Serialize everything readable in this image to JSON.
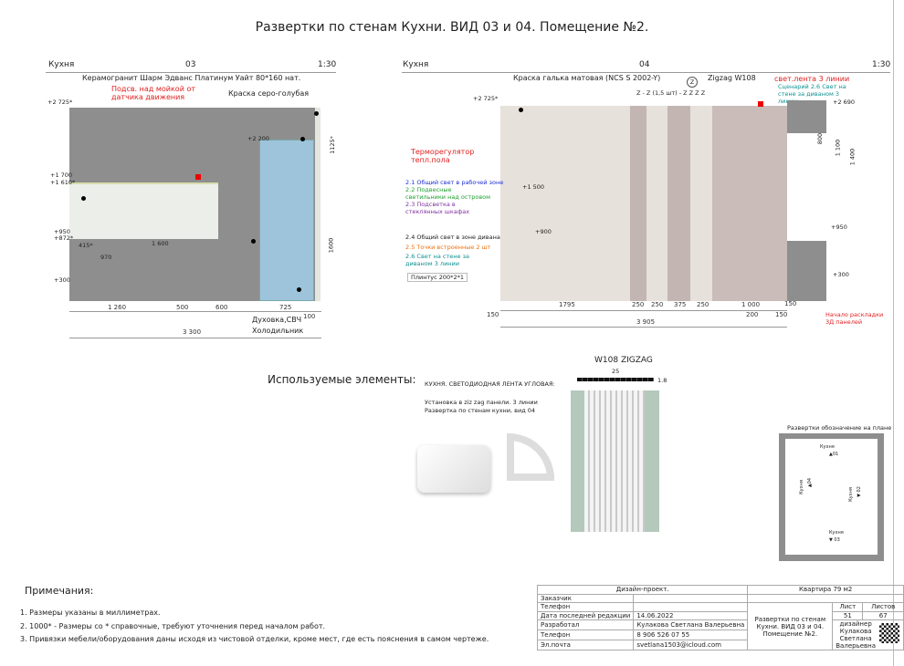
{
  "title": "Развертки по стенам Кухни. ВИД 03 и 04. Помещение №2.",
  "view03": {
    "room": "Кухня",
    "number": "03",
    "scale": "1:30",
    "labels": {
      "tile": "Керамогранит Шарм Эдванс Платинум Уайт 80*160 нат.",
      "backlight": "Подсв. над мойкой от датчика движения",
      "paint": "Краска серо-голубая",
      "oven": "Духовка,СВЧ",
      "fridge": "Холодильник"
    },
    "levels": {
      "top": "+2 725*",
      "l2200": "+2 200",
      "l1700": "+1 700",
      "l1610": "+1 610*",
      "l950": "+950",
      "l872": "+872*",
      "l300": "+300"
    },
    "dims": {
      "d415": "415*",
      "d1600": "1 600",
      "d970": "970",
      "d1260": "1 260",
      "d500": "500",
      "d600": "600",
      "d725": "725",
      "d100": "100",
      "d3300": "3 300",
      "v1125": "1125*",
      "v1600": "1600"
    }
  },
  "view04": {
    "room": "Кухня",
    "number": "04",
    "scale": "1:30",
    "labels": {
      "paint": "Краска галька матовая (NCS S 2002-Y)",
      "zmark": "Z",
      "zigzag": "Zigzag W108",
      "zrow": "Z   -   Z (1,5 шт)   -     Z     Z     Z     Z",
      "strip": "свет.лента 3 линии",
      "scenario": "Сценарий 2.6 Свет на стене за диваном 3 линии",
      "thermo": "Терморегулятор тепл.пола",
      "plinth": "Плинтус 200*2*1",
      "start": "Начало раскладки 3Д панелей"
    },
    "lights": [
      {
        "text": "2.1 Общий свет в рабочей зоне",
        "color": "#2030d0"
      },
      {
        "text": "2.2 Подвесные светильники над островом",
        "color": "#20a030"
      },
      {
        "text": "2.3 Подсветка в стеклянных шкафах",
        "color": "#8030a0"
      },
      {
        "text": "2.4 Общий свет в зоне дивана",
        "color": "#222222"
      },
      {
        "text": "2.5 Точки встроенные 2 шт",
        "color": "#f07010"
      },
      {
        "text": "2.6 Свет на стене за диваном 3 линии",
        "color": "#109090"
      }
    ],
    "levels": {
      "top": "+2 725*",
      "right": "+2 690",
      "l1500": "+1 500",
      "l900": "+900",
      "l950": "+950",
      "l300": "+300"
    },
    "dims": {
      "d1795": "1795",
      "d250a": "250",
      "d250b": "250",
      "d375": "375",
      "d250c": "250",
      "d1000": "1 000",
      "d150a": "150",
      "d150b": "150",
      "d200": "200",
      "d150c": "150",
      "d3905": "3 905",
      "v800": "800",
      "v1100": "1 100",
      "v1400": "1 400"
    }
  },
  "elements": {
    "heading": "Используемые элементы:",
    "led_title": "КУХНЯ. СВЕТОДИОДНАЯ ЛЕНТА УГЛОВАЯ:",
    "led_note1": "Установка в ziz zag панели. 3 линии",
    "led_note2": "Развертка по стенам кухни, вид 04",
    "panel_title": "W108 ZIGZAG",
    "panel_w": "25",
    "panel_h": "1.8",
    "plan_title": "Развертки обозначение на плане",
    "plan_labels": [
      "Кухня",
      "▲01",
      "Кухня",
      "▲04",
      "Кухня",
      "▼ 02",
      "Кухня",
      "▼ 03"
    ]
  },
  "notes": {
    "heading": "Примечания:",
    "items": [
      "1. Размеры указаны в миллиметрах.",
      "2. 1000* - Размеры со * справочные, требуют уточнения перед началом работ.",
      "3. Привязки мебели/оборудования даны исходя из чистовой отделки, кроме мест, где есть пояснения в самом чертеже."
    ]
  },
  "titleblock": {
    "project": "Дизайн-проект.",
    "object": "Квартира 79 м2",
    "customer": "Заказчик",
    "phone_label": "Телефон",
    "date_label": "Дата последней редакции",
    "date": "14.06.2022",
    "dev_label": "Разработал",
    "dev": "Кулакова Светлана Валерьевна",
    "phone_label2": "Телефон",
    "phone": "8 906 526 07 55",
    "email_label": "Эл.почта",
    "email": "svetlana1503@icloud.com",
    "sheet_title": "Развертки по стенам Кухни. ВИД 03 и 04. Помещение №2.",
    "sheet_label": "Лист",
    "sheet": "51",
    "sheets_label": "Листов",
    "sheets": "67",
    "designer": "дизайнер Кулакова Светлана Валерьевна"
  }
}
